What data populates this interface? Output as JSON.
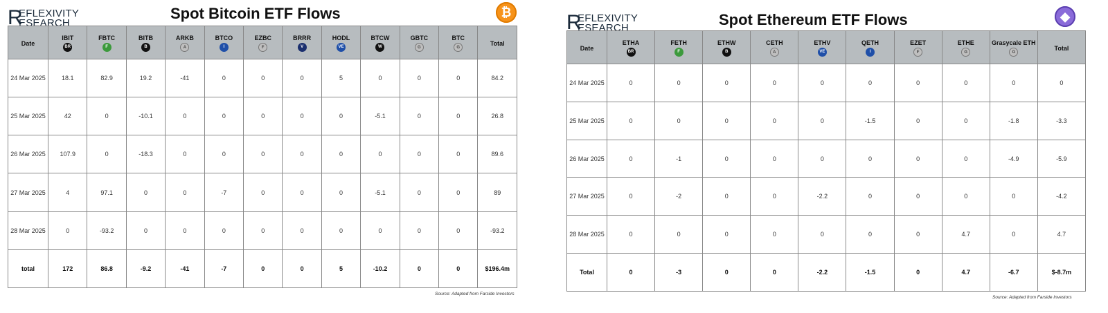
{
  "bitcoin": {
    "logo": {
      "r": "R",
      "line1": "EFLEXIVITY",
      "line2": "ESEARCH"
    },
    "title": "Spot Bitcoin ETF Flows",
    "coin_icon": "bitcoin-icon",
    "coin_glyph": "₿",
    "columns": [
      {
        "label": "Date",
        "icon": null
      },
      {
        "label": "IBIT",
        "icon": {
          "glyph": "BR",
          "bg": "#111111"
        }
      },
      {
        "label": "FBTC",
        "icon": {
          "glyph": "F",
          "bg": "#3c9a3c"
        }
      },
      {
        "label": "BITB",
        "icon": {
          "glyph": "B",
          "bg": "#111111"
        }
      },
      {
        "label": "ARKB",
        "icon": {
          "glyph": "A",
          "bg": "#bfbfbf"
        }
      },
      {
        "label": "BTCO",
        "icon": {
          "glyph": "I",
          "bg": "#1f4fa8"
        }
      },
      {
        "label": "EZBC",
        "icon": {
          "glyph": "F",
          "bg": "#bfbfbf"
        }
      },
      {
        "label": "BRRR",
        "icon": {
          "glyph": "V",
          "bg": "#1b2f6e"
        }
      },
      {
        "label": "HODL",
        "icon": {
          "glyph": "VE",
          "bg": "#1f4fa8"
        }
      },
      {
        "label": "BTCW",
        "icon": {
          "glyph": "W",
          "bg": "#111111"
        }
      },
      {
        "label": "GBTC",
        "icon": {
          "glyph": "G",
          "bg": "#bfbfbf"
        }
      },
      {
        "label": "BTC",
        "icon": {
          "glyph": "G",
          "bg": "#bfbfbf"
        }
      },
      {
        "label": "Total",
        "icon": null
      }
    ],
    "rows": [
      [
        "24 Mar 2025",
        "18.1",
        "82.9",
        "19.2",
        "-41",
        "0",
        "0",
        "0",
        "5",
        "0",
        "0",
        "0",
        "84.2"
      ],
      [
        "25 Mar 2025",
        "42",
        "0",
        "-10.1",
        "0",
        "0",
        "0",
        "0",
        "0",
        "-5.1",
        "0",
        "0",
        "26.8"
      ],
      [
        "26 Mar 2025",
        "107.9",
        "0",
        "-18.3",
        "0",
        "0",
        "0",
        "0",
        "0",
        "0",
        "0",
        "0",
        "89.6"
      ],
      [
        "27 Mar 2025",
        "4",
        "97.1",
        "0",
        "0",
        "-7",
        "0",
        "0",
        "0",
        "-5.1",
        "0",
        "0",
        "89"
      ],
      [
        "28 Mar 2025",
        "0",
        "-93.2",
        "0",
        "0",
        "0",
        "0",
        "0",
        "0",
        "0",
        "0",
        "0",
        "-93.2"
      ]
    ],
    "total_row": [
      "total",
      "172",
      "86.8",
      "-9.2",
      "-41",
      "-7",
      "0",
      "0",
      "5",
      "-10.2",
      "0",
      "0",
      "$196.4m"
    ],
    "source": "Source: Adapted from Farside Investors"
  },
  "ethereum": {
    "logo": {
      "r": "R",
      "line1": "EFLEXIVITY",
      "line2": "ESEARCH"
    },
    "title": "Spot Ethereum ETF Flows",
    "coin_icon": "ethereum-icon",
    "coin_glyph": "◆",
    "columns": [
      {
        "label": "Date",
        "icon": null
      },
      {
        "label": "ETHA",
        "icon": {
          "glyph": "BR",
          "bg": "#111111"
        }
      },
      {
        "label": "FETH",
        "icon": {
          "glyph": "F",
          "bg": "#3c9a3c"
        }
      },
      {
        "label": "ETHW",
        "icon": {
          "glyph": "B",
          "bg": "#111111"
        }
      },
      {
        "label": "CETH",
        "icon": {
          "glyph": "A",
          "bg": "#bfbfbf"
        }
      },
      {
        "label": "ETHV",
        "icon": {
          "glyph": "VE",
          "bg": "#1f4fa8"
        }
      },
      {
        "label": "QETH",
        "icon": {
          "glyph": "I",
          "bg": "#1f4fa8"
        }
      },
      {
        "label": "EZET",
        "icon": {
          "glyph": "F",
          "bg": "#bfbfbf"
        }
      },
      {
        "label": "ETHE",
        "icon": {
          "glyph": "G",
          "bg": "#bfbfbf"
        }
      },
      {
        "label": "Grasycale ETH",
        "icon": {
          "glyph": "G",
          "bg": "#bfbfbf"
        }
      },
      {
        "label": "Total",
        "icon": null
      }
    ],
    "rows": [
      [
        "24 Mar 2025",
        "0",
        "0",
        "0",
        "0",
        "0",
        "0",
        "0",
        "0",
        "0",
        "0"
      ],
      [
        "25 Mar 2025",
        "0",
        "0",
        "0",
        "0",
        "0",
        "-1.5",
        "0",
        "0",
        "-1.8",
        "-3.3"
      ],
      [
        "26 Mar 2025",
        "0",
        "-1",
        "0",
        "0",
        "0",
        "0",
        "0",
        "0",
        "-4.9",
        "-5.9"
      ],
      [
        "27 Mar 2025",
        "0",
        "-2",
        "0",
        "0",
        "-2.2",
        "0",
        "0",
        "0",
        "0",
        "-4.2"
      ],
      [
        "28 Mar 2025",
        "0",
        "0",
        "0",
        "0",
        "0",
        "0",
        "0",
        "4.7",
        "0",
        "4.7"
      ]
    ],
    "total_row": [
      "Total",
      "0",
      "-3",
      "0",
      "0",
      "-2.2",
      "-1.5",
      "0",
      "4.7",
      "-6.7",
      "$-8.7m"
    ],
    "source": "Source: Adapted from Farside Investors"
  }
}
